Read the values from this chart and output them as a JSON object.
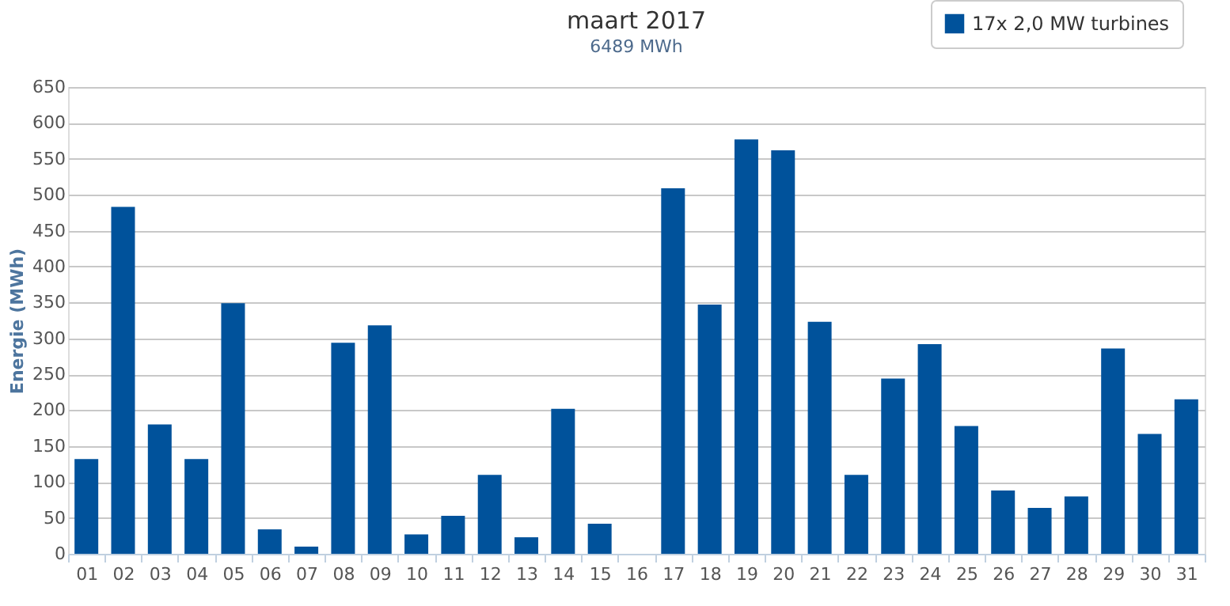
{
  "chart_data": {
    "type": "bar",
    "title": "maart 2017",
    "subtitle": "6489 MWh",
    "ylabel": "Energie (MWh)",
    "categories": [
      "01",
      "02",
      "03",
      "04",
      "05",
      "06",
      "07",
      "08",
      "09",
      "10",
      "11",
      "12",
      "13",
      "14",
      "15",
      "16",
      "17",
      "18",
      "19",
      "20",
      "21",
      "22",
      "23",
      "24",
      "25",
      "26",
      "27",
      "28",
      "29",
      "30",
      "31"
    ],
    "series": [
      {
        "name": "17x 2,0 MW turbines",
        "color": "#00529b",
        "values": [
          132,
          483,
          180,
          132,
          349,
          34,
          10,
          294,
          318,
          27,
          53,
          110,
          23,
          202,
          42,
          0,
          509,
          347,
          577,
          562,
          323,
          110,
          244,
          292,
          178,
          88,
          64,
          80,
          286,
          167,
          215
        ]
      }
    ],
    "ylim": [
      0,
      650
    ],
    "yticks": [
      0,
      50,
      100,
      150,
      200,
      250,
      300,
      350,
      400,
      450,
      500,
      550,
      600,
      650
    ],
    "grid": "y",
    "legend": "top right"
  }
}
